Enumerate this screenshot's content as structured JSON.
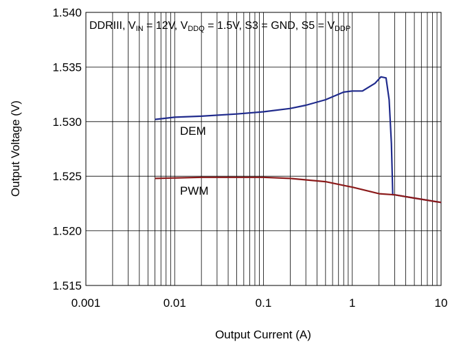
{
  "chart_data": {
    "type": "line",
    "xlabel": "Output Current (A)",
    "ylabel": "Output Voltage (V)",
    "annotation": [
      "DDRIII, V",
      "IN",
      " = 12V, V",
      "DDQ",
      " = 1.5V, S3 = GND, S5 = V",
      "DDP"
    ],
    "xscale": "log",
    "xlim": [
      0.001,
      10
    ],
    "xticks": [
      0.001,
      0.01,
      0.1,
      1,
      10
    ],
    "xminorticks": [
      0.002,
      0.003,
      0.004,
      0.005,
      0.006,
      0.007,
      0.008,
      0.009,
      0.02,
      0.03,
      0.04,
      0.05,
      0.06,
      0.07,
      0.08,
      0.09,
      0.2,
      0.3,
      0.4,
      0.5,
      0.6,
      0.7,
      0.8,
      0.9,
      2,
      3,
      4,
      5,
      6,
      7,
      8,
      9
    ],
    "ylim": [
      1.515,
      1.54
    ],
    "yticks": [
      {
        "value": 1.515,
        "label": "1.515"
      },
      {
        "value": 1.52,
        "label": "1.520"
      },
      {
        "value": 1.525,
        "label": "1.525"
      },
      {
        "value": 1.53,
        "label": "1.530"
      },
      {
        "value": 1.535,
        "label": "1.535"
      },
      {
        "value": 1.54,
        "label": "1.540"
      }
    ],
    "grid": true,
    "series": [
      {
        "name": "DEM",
        "color": "#1f2a8c",
        "x": [
          0.006,
          0.01,
          0.02,
          0.05,
          0.1,
          0.2,
          0.3,
          0.5,
          0.8,
          1,
          1.3,
          1.8,
          2.1,
          2.4,
          2.6,
          2.76,
          2.86,
          3,
          5,
          10
        ],
        "values": [
          1.5302,
          1.5304,
          1.5305,
          1.5307,
          1.5309,
          1.5312,
          1.5315,
          1.532,
          1.5327,
          1.5328,
          1.5328,
          1.5335,
          1.5341,
          1.534,
          1.532,
          1.528,
          1.5233,
          1.5233,
          1.523,
          1.5226
        ]
      },
      {
        "name": "PWM",
        "color": "#8b1a1a",
        "x": [
          0.006,
          0.02,
          0.1,
          0.2,
          0.5,
          1,
          2,
          3,
          5,
          10
        ],
        "values": [
          1.5248,
          1.5249,
          1.5249,
          1.5248,
          1.5245,
          1.524,
          1.5234,
          1.5233,
          1.523,
          1.5226
        ]
      }
    ]
  }
}
